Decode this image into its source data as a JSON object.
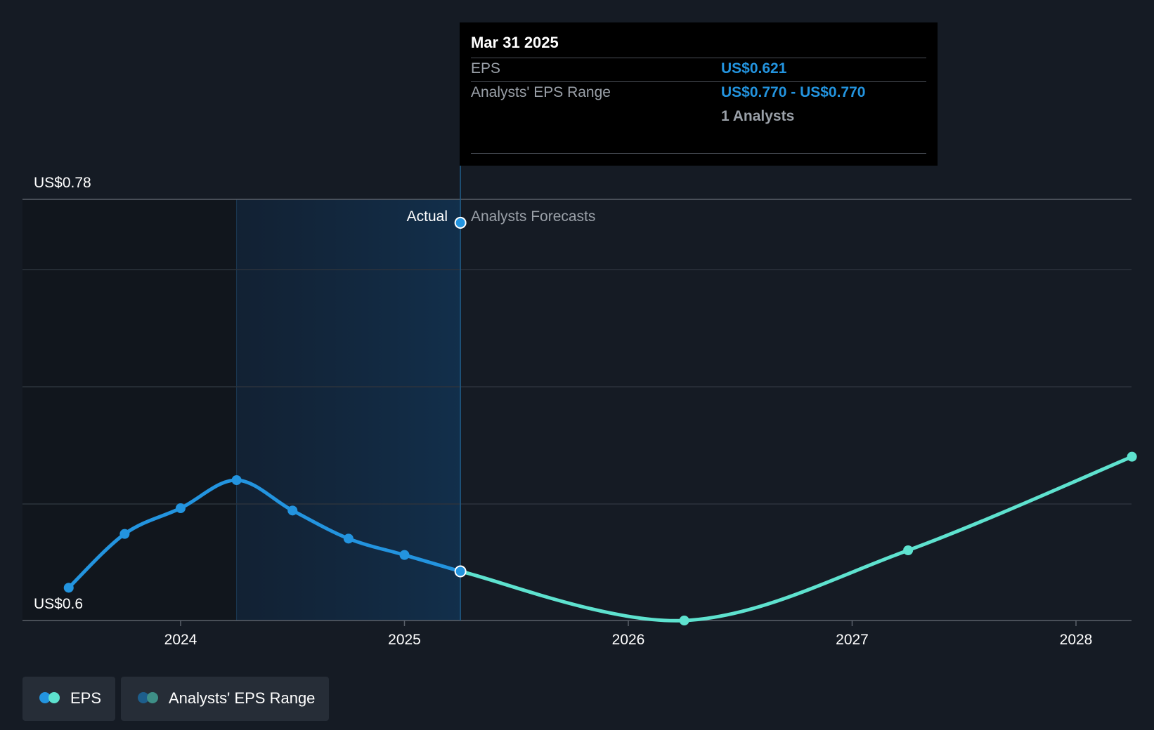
{
  "chart_data": {
    "type": "line",
    "y_axis": {
      "top_label": "US$0.78",
      "bottom_label": "US$0.6",
      "ylim": [
        0.6,
        0.78
      ],
      "gridlines": true
    },
    "x_axis": {
      "ticks": [
        "2024",
        "2025",
        "2026",
        "2027",
        "2028"
      ]
    },
    "divider": {
      "left_label": "Actual",
      "right_label": "Analysts Forecasts"
    },
    "series": [
      {
        "name": "EPS",
        "color": "#2394df",
        "kind": "actual",
        "points": [
          {
            "x": 2023.5,
            "y": 0.614
          },
          {
            "x": 2023.75,
            "y": 0.637
          },
          {
            "x": 2024.0,
            "y": 0.648
          },
          {
            "x": 2024.25,
            "y": 0.66
          },
          {
            "x": 2024.5,
            "y": 0.647
          },
          {
            "x": 2024.75,
            "y": 0.635
          },
          {
            "x": 2025.0,
            "y": 0.628
          },
          {
            "x": 2025.25,
            "y": 0.621
          }
        ]
      },
      {
        "name": "EPS",
        "color": "#5ee2cf",
        "kind": "forecast",
        "points": [
          {
            "x": 2025.25,
            "y": 0.621
          },
          {
            "x": 2026.25,
            "y": 0.6
          },
          {
            "x": 2027.25,
            "y": 0.63
          },
          {
            "x": 2028.25,
            "y": 0.67
          }
        ]
      }
    ],
    "range_marker": {
      "x": 2025.25,
      "y": 0.77
    }
  },
  "tooltip": {
    "date": "Mar 31 2025",
    "eps_label": "EPS",
    "eps_value": "US$0.621",
    "range_label": "Analysts' EPS Range",
    "range_value": "US$0.770 - US$0.770",
    "analysts": "1 Analysts"
  },
  "legend": {
    "items": [
      {
        "label": "EPS",
        "colors": [
          "#2394df",
          "#5ee2cf"
        ]
      },
      {
        "label": "Analysts' EPS Range",
        "colors": [
          "#1d5e8c",
          "#3e8f87"
        ]
      }
    ]
  }
}
